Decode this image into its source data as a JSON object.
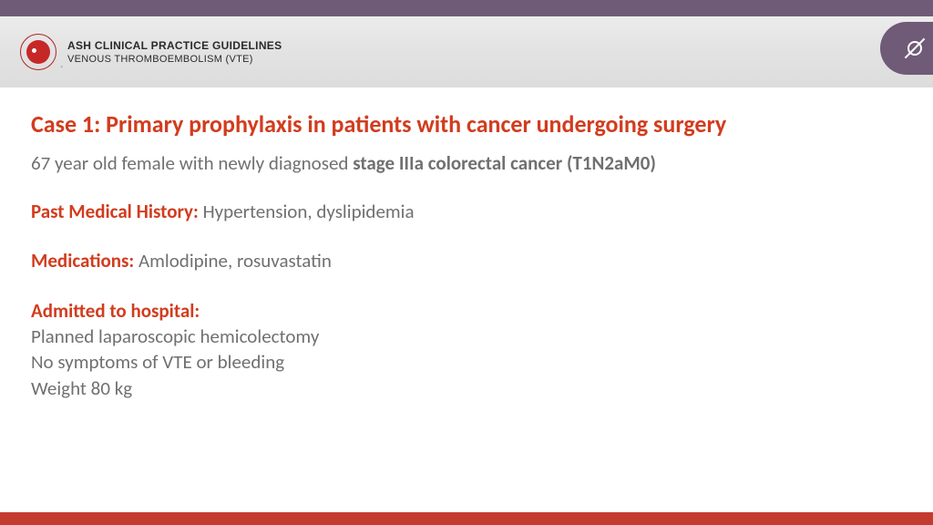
{
  "colors": {
    "purple": "#6f5a78",
    "header_grad_top": "#ececec",
    "header_grad_bottom": "#dcdcdc",
    "red_accent": "#d23c1e",
    "bottom_bar": "#c33b2f",
    "body_text": "#707070",
    "logo_red": "#c62828"
  },
  "header": {
    "line1": "ASH CLINICAL PRACTICE GUIDELINES",
    "line2": "VENOUS THROMBOEMBOLISM (VTE)"
  },
  "title": "Case 1: Primary prophylaxis in patients with cancer undergoing surgery",
  "intro": {
    "prefix": "67 year old female with newly diagnosed ",
    "bold": "stage IIIa colorectal cancer (T1N2aM0)"
  },
  "pmh": {
    "label": "Past Medical History: ",
    "value": "Hypertension, dyslipidemia"
  },
  "meds": {
    "label": "Medications: ",
    "value": "Amlodipine, rosuvastatin"
  },
  "admitted": {
    "label": "Admitted to hospital:",
    "lines": [
      "Planned laparoscopic hemicolectomy",
      "No symptoms of VTE or bleeding",
      "Weight 80 kg"
    ]
  }
}
